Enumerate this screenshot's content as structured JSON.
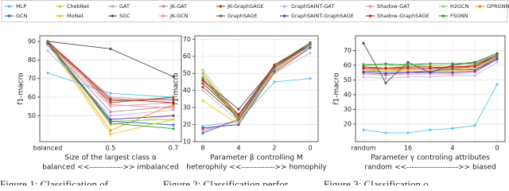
{
  "legend": [
    {
      "name": "MLP",
      "color": "#5bc8e8"
    },
    {
      "name": "ChebNet",
      "color": "#c8d040"
    },
    {
      "name": "GAT",
      "color": "#b0b0b0"
    },
    {
      "name": "JK-GAT",
      "color": "#c08a8a"
    },
    {
      "name": "JK-GraphSAGE",
      "color": "#a0522d"
    },
    {
      "name": "GraphSAINT-GAT",
      "color": "#c4b4e4"
    },
    {
      "name": "Shadow-GAT",
      "color": "#f29090"
    },
    {
      "name": "H2GCN",
      "color": "#8fd18f"
    },
    {
      "name": "GPRGNN",
      "color": "#ff8c1a"
    },
    {
      "name": "GCN",
      "color": "#2f6fc0"
    },
    {
      "name": "MoNet",
      "color": "#e6cc1a"
    },
    {
      "name": "SGC",
      "color": "#555555"
    },
    {
      "name": "JK-GCN",
      "color": "#e89ab8"
    },
    {
      "name": "GraphSAGE",
      "color": "#8b5a3c"
    },
    {
      "name": "GraphSAINT-GraphSAGE",
      "color": "#6a3d9a"
    },
    {
      "name": "Shadow-GraphSAGE",
      "color": "#e41a1c"
    },
    {
      "name": "FSGNN",
      "color": "#2ca02c"
    }
  ],
  "chart_data": [
    {
      "type": "line",
      "ylabel": "f1-macro",
      "xlabel": "Size of the largest class α",
      "xnote": "balanced <<------------->> imbalanced",
      "categories": [
        "balanced",
        "0.5",
        "0.7"
      ],
      "ylim": [
        36,
        93
      ],
      "yticks": [
        50,
        60,
        70,
        80,
        90
      ],
      "grid": true,
      "series": [
        {
          "values": [
            73,
            62,
            60
          ]
        },
        {
          "values": [
            90,
            45,
            50
          ]
        },
        {
          "values": [
            90,
            60,
            58
          ]
        },
        {
          "values": [
            89,
            52,
            55
          ]
        },
        {
          "values": [
            89,
            57,
            60
          ]
        },
        {
          "values": [
            85,
            50,
            53
          ]
        },
        {
          "values": [
            90,
            56,
            54
          ]
        },
        {
          "values": [
            90,
            47,
            48
          ]
        },
        {
          "values": [
            90,
            42,
            56
          ]
        },
        {
          "values": [
            88,
            47,
            45
          ]
        },
        {
          "values": [
            89,
            40,
            48
          ]
        },
        {
          "values": [
            90,
            86,
            71
          ]
        },
        {
          "values": [
            88,
            55,
            57
          ]
        },
        {
          "values": [
            90,
            58,
            59
          ]
        },
        {
          "values": [
            89,
            48,
            50
          ]
        },
        {
          "values": [
            90,
            59,
            57
          ]
        },
        {
          "values": [
            90,
            46,
            43
          ]
        }
      ]
    },
    {
      "type": "line",
      "ylabel": "f1-macro",
      "xlabel": "Parameter β controlling M",
      "xnote": "heterophily <<------------->> homophily",
      "categories": [
        "8",
        "4",
        "2",
        "0"
      ],
      "ylim": [
        10,
        72
      ],
      "yticks": [
        10,
        20,
        30,
        40,
        50,
        60,
        70
      ],
      "grid": true,
      "series": [
        {
          "values": [
            19,
            22,
            45,
            47
          ]
        },
        {
          "values": [
            50,
            24,
            52,
            67
          ]
        },
        {
          "values": [
            48,
            26,
            55,
            67
          ]
        },
        {
          "values": [
            17,
            22,
            53,
            66
          ]
        },
        {
          "values": [
            42,
            24,
            54,
            67
          ]
        },
        {
          "values": [
            40,
            22,
            50,
            62
          ]
        },
        {
          "values": [
            45,
            24,
            53,
            66
          ]
        },
        {
          "values": [
            52,
            25,
            55,
            68
          ]
        },
        {
          "values": [
            50,
            22,
            52,
            66
          ]
        },
        {
          "values": [
            15,
            23,
            55,
            66
          ]
        },
        {
          "values": [
            34,
            20,
            50,
            65
          ]
        },
        {
          "values": [
            46,
            29,
            54,
            68
          ]
        },
        {
          "values": [
            16,
            23,
            52,
            66
          ]
        },
        {
          "values": [
            44,
            25,
            55,
            67
          ]
        },
        {
          "values": [
            18,
            20,
            51,
            65
          ]
        },
        {
          "values": [
            46,
            26,
            54,
            67
          ]
        },
        {
          "values": [
            47,
            23,
            53,
            67
          ]
        }
      ]
    },
    {
      "type": "line",
      "ylabel": "f1-macro",
      "xlabel": "Parameter γ controling attributes",
      "xnote": "random <<-------------------->> biased",
      "categories": [
        "random",
        null,
        "16",
        null,
        "4",
        null,
        "0"
      ],
      "ylim": [
        8,
        80
      ],
      "yticks": [
        20,
        30,
        40,
        50,
        60,
        70
      ],
      "grid": true,
      "series": [
        {
          "values": [
            16,
            14,
            14,
            16,
            17,
            19,
            47
          ]
        },
        {
          "values": [
            60,
            60,
            59,
            60,
            59,
            60,
            67
          ]
        },
        {
          "values": [
            58,
            57,
            58,
            58,
            57,
            58,
            66
          ]
        },
        {
          "values": [
            55,
            54,
            55,
            55,
            55,
            56,
            65
          ]
        },
        {
          "values": [
            59,
            58,
            59,
            59,
            58,
            60,
            67
          ]
        },
        {
          "values": [
            52,
            51,
            52,
            52,
            53,
            53,
            62
          ]
        },
        {
          "values": [
            57,
            57,
            57,
            57,
            57,
            58,
            66
          ]
        },
        {
          "values": [
            61,
            60,
            61,
            61,
            61,
            62,
            68
          ]
        },
        {
          "values": [
            56,
            56,
            56,
            56,
            56,
            57,
            65
          ]
        },
        {
          "values": [
            56,
            55,
            55,
            56,
            57,
            57,
            65
          ]
        },
        {
          "values": [
            57,
            56,
            57,
            57,
            56,
            58,
            66
          ]
        },
        {
          "values": [
            75,
            48,
            62,
            55,
            60,
            62,
            68
          ]
        },
        {
          "values": [
            54,
            53,
            54,
            54,
            54,
            55,
            64
          ]
        },
        {
          "values": [
            58,
            58,
            58,
            58,
            58,
            59,
            66
          ]
        },
        {
          "values": [
            55,
            54,
            55,
            55,
            55,
            56,
            64
          ]
        },
        {
          "values": [
            58,
            58,
            58,
            58,
            59,
            59,
            67
          ]
        },
        {
          "values": [
            60,
            61,
            60,
            61,
            61,
            61,
            67
          ]
        }
      ]
    }
  ],
  "captions": [
    "Figure 1: Classification of",
    "Figure 2: Classification perfor",
    "Figure 3: Classification o"
  ]
}
